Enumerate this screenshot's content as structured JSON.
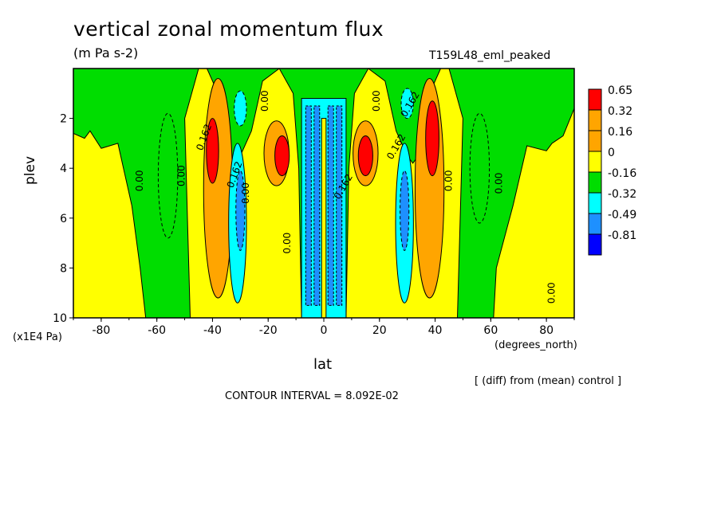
{
  "header": {
    "title": "vertical zonal momentum flux",
    "units": "(m Pa s-2)",
    "run_id": "T159L48_eml_peaked",
    "diff_note": "[ (diff) from (mean) control ]",
    "contour_interval": "CONTOUR INTERVAL = 8.092E-02"
  },
  "chart_data": {
    "type": "heatmap",
    "title": "vertical zonal momentum flux",
    "subtitle": "(m Pa s-2)",
    "xlabel": "lat",
    "xunit": "(degrees_north)",
    "ylabel": "plev",
    "yunit": "(x1E4 Pa)",
    "xlim": [
      -90,
      90
    ],
    "ylim": [
      10,
      0
    ],
    "x_ticks": [
      -80,
      -60,
      -40,
      -20,
      0,
      20,
      40,
      60,
      80
    ],
    "y_ticks": [
      2,
      4,
      6,
      8,
      10
    ],
    "legend": {
      "placement": "right",
      "levels": [
        "0.65",
        "0.32",
        "0.16",
        "0",
        "-0.16",
        "-0.32",
        "-0.49",
        "-0.81"
      ],
      "colors": [
        "#ff0000",
        "#ffa500",
        "#ffa500",
        "#ffff00",
        "#00dd00",
        "#00ffff",
        "#1e90ff",
        "#0000ff"
      ]
    },
    "contour_labels": [
      "0.00",
      "0.00",
      "0.00",
      "0.00",
      "0.00",
      "0.00",
      "0.00",
      "0.00",
      "0.00",
      "0.162",
      "0.162",
      "0.162",
      "0.162",
      "0.162"
    ]
  }
}
